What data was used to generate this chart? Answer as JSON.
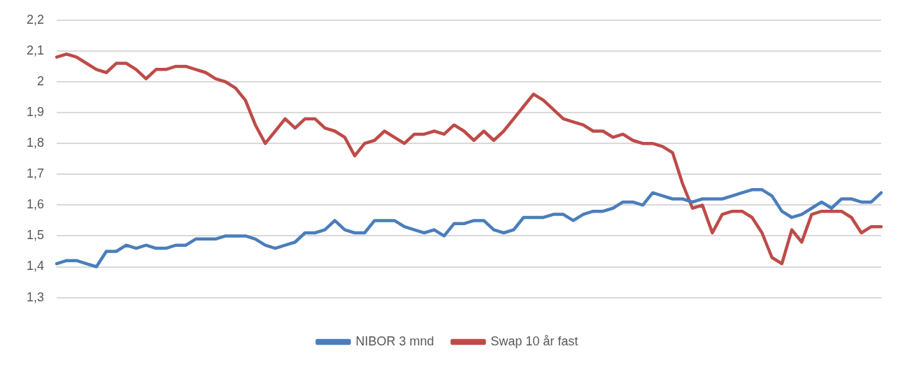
{
  "chart_data": {
    "type": "line",
    "categories": [
      null,
      null,
      null,
      null,
      null,
      null,
      null,
      null,
      null,
      null,
      null,
      null,
      null,
      null,
      null,
      null,
      null,
      null,
      null,
      null,
      null,
      null,
      null,
      null,
      null,
      null,
      null,
      null,
      null,
      null,
      null,
      null,
      null,
      null,
      null,
      null,
      null,
      null,
      null,
      null,
      null,
      null,
      null,
      null,
      null,
      null,
      null,
      null,
      null,
      null,
      null,
      null,
      null,
      null,
      null,
      null,
      null,
      null,
      null,
      null,
      null,
      null,
      null,
      null,
      null,
      null,
      null,
      null,
      null,
      null,
      null,
      null,
      null,
      null,
      null,
      null,
      null,
      null,
      null,
      null,
      null,
      null,
      null,
      null
    ],
    "series": [
      {
        "name": "NIBOR 3 mnd",
        "color": "#4a7ebb",
        "values": [
          1.41,
          1.42,
          1.42,
          1.41,
          1.4,
          1.45,
          1.45,
          1.47,
          1.46,
          1.47,
          1.46,
          1.46,
          1.47,
          1.47,
          1.49,
          1.49,
          1.49,
          1.5,
          1.5,
          1.5,
          1.49,
          1.47,
          1.46,
          1.47,
          1.48,
          1.51,
          1.51,
          1.52,
          1.55,
          1.52,
          1.51,
          1.51,
          1.55,
          1.55,
          1.55,
          1.53,
          1.52,
          1.51,
          1.52,
          1.5,
          1.54,
          1.54,
          1.55,
          1.55,
          1.52,
          1.51,
          1.52,
          1.56,
          1.56,
          1.56,
          1.57,
          1.57,
          1.55,
          1.57,
          1.58,
          1.58,
          1.59,
          1.61,
          1.61,
          1.6,
          1.64,
          1.63,
          1.62,
          1.62,
          1.61,
          1.62,
          1.62,
          1.62,
          1.63,
          1.64,
          1.65,
          1.65,
          1.63,
          1.58,
          1.56,
          1.57,
          1.59,
          1.61,
          1.59,
          1.62,
          1.62,
          1.61,
          1.61,
          1.64
        ]
      },
      {
        "name": "Swap 10 år fast",
        "color": "#be4b48",
        "values": [
          2.08,
          2.09,
          2.08,
          2.06,
          2.04,
          2.03,
          2.06,
          2.06,
          2.04,
          2.01,
          2.04,
          2.04,
          2.05,
          2.05,
          2.04,
          2.03,
          2.01,
          2.0,
          1.98,
          1.94,
          1.86,
          1.8,
          1.84,
          1.88,
          1.85,
          1.88,
          1.88,
          1.85,
          1.84,
          1.82,
          1.76,
          1.8,
          1.81,
          1.84,
          1.82,
          1.8,
          1.83,
          1.83,
          1.84,
          1.83,
          1.86,
          1.84,
          1.81,
          1.84,
          1.81,
          1.84,
          1.88,
          1.92,
          1.96,
          1.94,
          1.91,
          1.88,
          1.87,
          1.86,
          1.84,
          1.84,
          1.82,
          1.83,
          1.81,
          1.8,
          1.8,
          1.79,
          1.77,
          1.67,
          1.59,
          1.6,
          1.51,
          1.57,
          1.58,
          1.58,
          1.56,
          1.51,
          1.43,
          1.41,
          1.52,
          1.48,
          1.57,
          1.58,
          1.58,
          1.58,
          1.56,
          1.51,
          1.53,
          1.53
        ]
      }
    ],
    "ylim": [
      1.3,
      2.2
    ],
    "yticks": [
      {
        "value": 1.3,
        "label": "1,3"
      },
      {
        "value": 1.4,
        "label": "1,4"
      },
      {
        "value": 1.5,
        "label": "1,5"
      },
      {
        "value": 1.6,
        "label": "1,6"
      },
      {
        "value": 1.7,
        "label": "1,7"
      },
      {
        "value": 1.8,
        "label": "1,8"
      },
      {
        "value": 1.9,
        "label": "1,9"
      },
      {
        "value": 2,
        "label": "2"
      },
      {
        "value": 2.1,
        "label": "2,1"
      },
      {
        "value": 2.2,
        "label": "2,2"
      }
    ],
    "grid": "y",
    "legend": "bottom",
    "marker": "none",
    "line_style": "solid"
  }
}
